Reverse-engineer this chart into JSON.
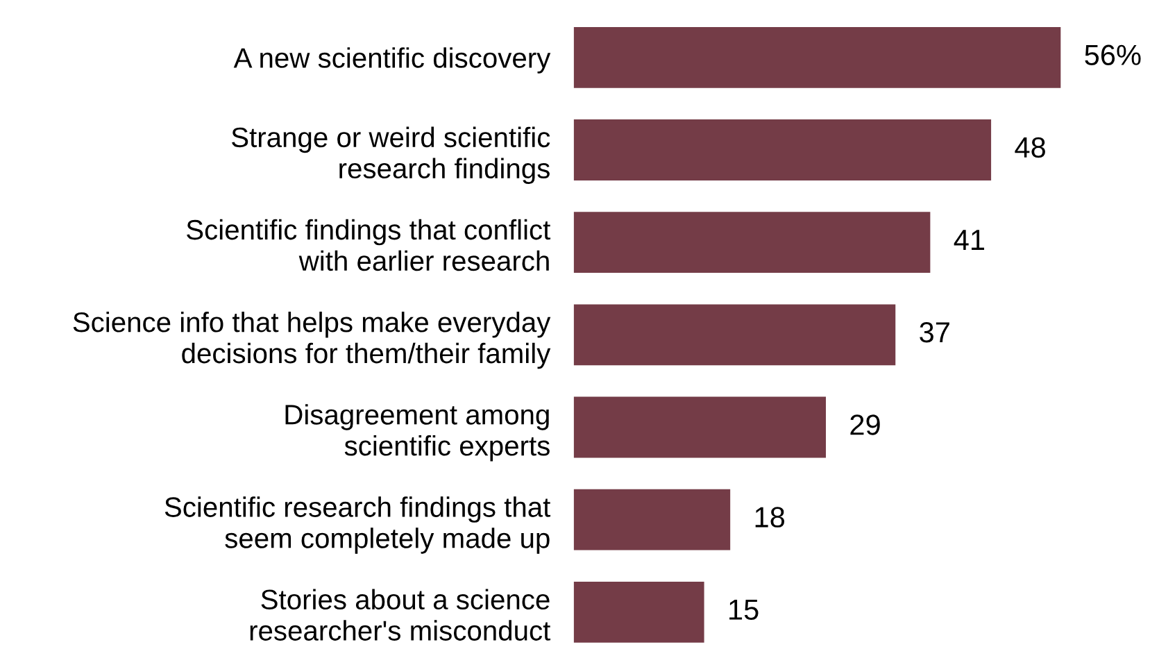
{
  "chart_data": {
    "type": "bar",
    "orientation": "horizontal",
    "categories": [
      "A new scientific discovery",
      "Strange or weird scientific\nresearch findings",
      "Scientific findings that conflict\nwith earlier research",
      "Science info that helps make everyday\ndecisions for them/their family",
      "Disagreement among\nscientific experts",
      "Scientific research findings that\nseem completely made up",
      "Stories about a science\nresearcher's misconduct"
    ],
    "values": [
      56,
      48,
      41,
      37,
      29,
      18,
      15
    ],
    "value_labels": [
      "56%",
      "48",
      "41",
      "37",
      "29",
      "18",
      "15"
    ],
    "color": "#743c47",
    "grid": false,
    "legend": false
  }
}
